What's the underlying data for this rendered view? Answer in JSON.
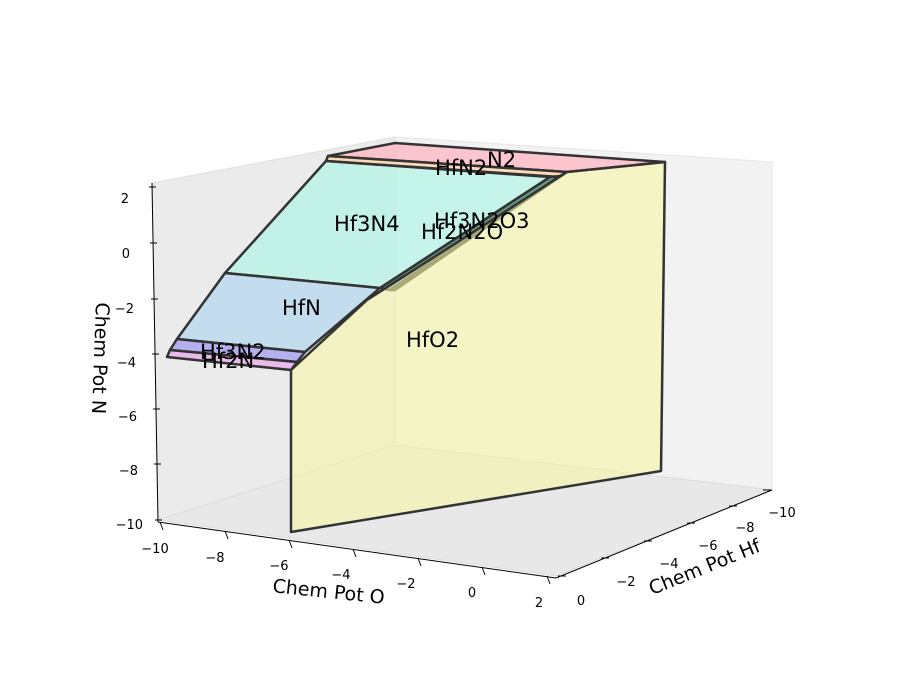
{
  "chart_data": {
    "type": "area",
    "projection": "3d",
    "xlabel": "Chem Pot O",
    "ylabel": "Chem Pot Hf",
    "zlabel": "Chem Pot N",
    "xlim": [
      -10,
      2
    ],
    "ylim": [
      -10,
      0
    ],
    "zlim": [
      -10,
      2
    ],
    "x_ticks": [
      "−10",
      "−8",
      "−6",
      "−4",
      "−2",
      "0",
      "2"
    ],
    "y_ticks": [
      "0",
      "−2",
      "−4",
      "−6",
      "−8",
      "−10"
    ],
    "z_ticks": [
      "2",
      "0",
      "−2",
      "−4",
      "−6",
      "−8",
      "−10"
    ],
    "regions": [
      {
        "name": "N2",
        "color": "#ffb6c1"
      },
      {
        "name": "HfN2",
        "color": "#ffd2a6"
      },
      {
        "name": "Hf3N4",
        "color": "#a6f5e6"
      },
      {
        "name": "Hf3N2O3",
        "color": "#0b5d3a"
      },
      {
        "name": "Hf2N2O",
        "color": "#3f5f1f"
      },
      {
        "name": "HfN",
        "color": "#a9d2f0"
      },
      {
        "name": "Hf3N2",
        "color": "#9c95f0"
      },
      {
        "name": "Hf2N",
        "color": "#e7a6ec"
      },
      {
        "name": "HfO2",
        "color": "#f5f5a6"
      }
    ],
    "grid": false,
    "legend": "none"
  }
}
